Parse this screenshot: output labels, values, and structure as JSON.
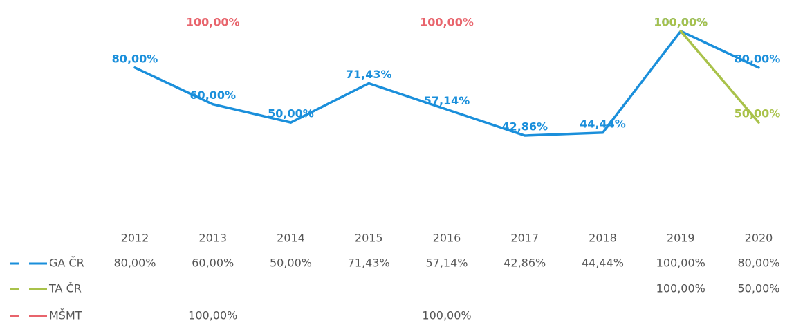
{
  "chart_data": {
    "type": "line",
    "categories": [
      "2012",
      "2013",
      "2014",
      "2015",
      "2016",
      "2017",
      "2018",
      "2019",
      "2020"
    ],
    "series": [
      {
        "name": "GA ČR",
        "color": "#1a8fdb",
        "values": [
          80,
          60,
          50,
          71.43,
          57.14,
          42.86,
          44.44,
          100,
          80
        ],
        "value_labels": [
          "80,00%",
          "60,00%",
          "50,00%",
          "71,43%",
          "57,14%",
          "42,86%",
          "44,44%",
          "100,00%",
          "80,00%"
        ]
      },
      {
        "name": "TA ČR",
        "color": "#a9c24a",
        "values": [
          null,
          null,
          null,
          null,
          null,
          null,
          null,
          100,
          50
        ],
        "value_labels": [
          null,
          null,
          null,
          null,
          null,
          null,
          null,
          "100,00%",
          "50,00%"
        ]
      },
      {
        "name": "MŠMT",
        "color": "#e8646c",
        "values": [
          null,
          100,
          null,
          null,
          100,
          null,
          null,
          null,
          null
        ],
        "value_labels": [
          null,
          "100,00%",
          null,
          null,
          "100,00%",
          null,
          null,
          null,
          null
        ]
      }
    ]
  }
}
